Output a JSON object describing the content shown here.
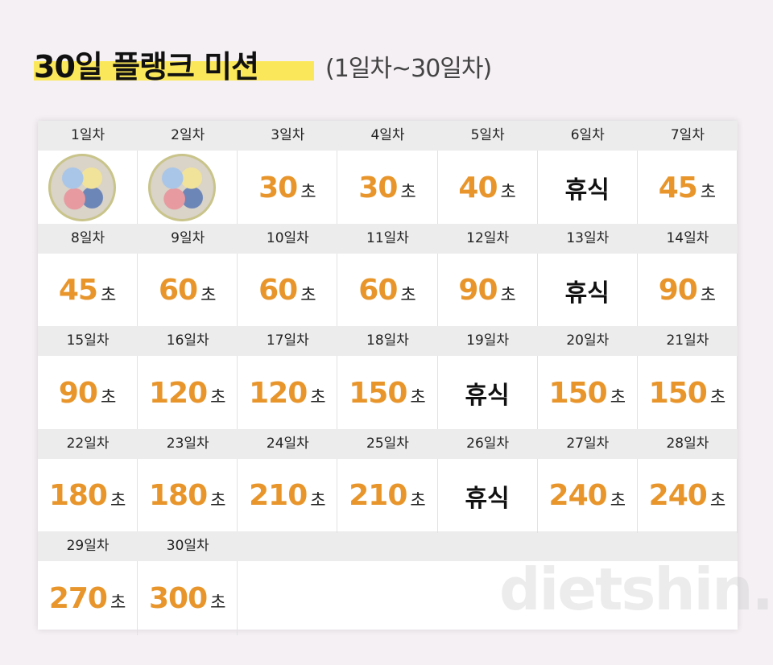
{
  "header": {
    "title": "30일 플랭크 미션",
    "subtitle": "(1일차~30일차)"
  },
  "unit": "초",
  "days": [
    {
      "label": "1일차"
    },
    {
      "label": "2일차"
    },
    {
      "label": "3일차",
      "value": 30
    },
    {
      "label": "4일차",
      "value": 30
    },
    {
      "label": "5일차",
      "value": 40
    },
    {
      "label": "6일차",
      "text": "휴식"
    },
    {
      "label": "7일차",
      "value": 45
    },
    {
      "label": "8일차",
      "value": 45
    },
    {
      "label": "9일차",
      "value": 60
    },
    {
      "label": "10일차",
      "value": 60
    },
    {
      "label": "11일차",
      "value": 60
    },
    {
      "label": "12일차",
      "value": 90
    },
    {
      "label": "13일차",
      "text": "휴식"
    },
    {
      "label": "14일차",
      "value": 90
    },
    {
      "label": "15일차",
      "value": 90
    },
    {
      "label": "16일차",
      "value": 120
    },
    {
      "label": "17일차",
      "value": 120
    },
    {
      "label": "18일차",
      "value": 150
    },
    {
      "label": "19일차",
      "text": "휴식"
    },
    {
      "label": "20일차",
      "value": 150
    },
    {
      "label": "21일차",
      "value": 150
    },
    {
      "label": "22일차",
      "value": 180
    },
    {
      "label": "23일차",
      "value": 180
    },
    {
      "label": "24일차",
      "value": 210
    },
    {
      "label": "25일차",
      "value": 210
    },
    {
      "label": "26일차",
      "text": "휴식"
    },
    {
      "label": "27일차",
      "value": 240
    },
    {
      "label": "28일차",
      "value": 240
    },
    {
      "label": "29일차",
      "value": 270
    },
    {
      "label": "30일차",
      "value": 300
    }
  ],
  "watermark": "dietshin.com"
}
